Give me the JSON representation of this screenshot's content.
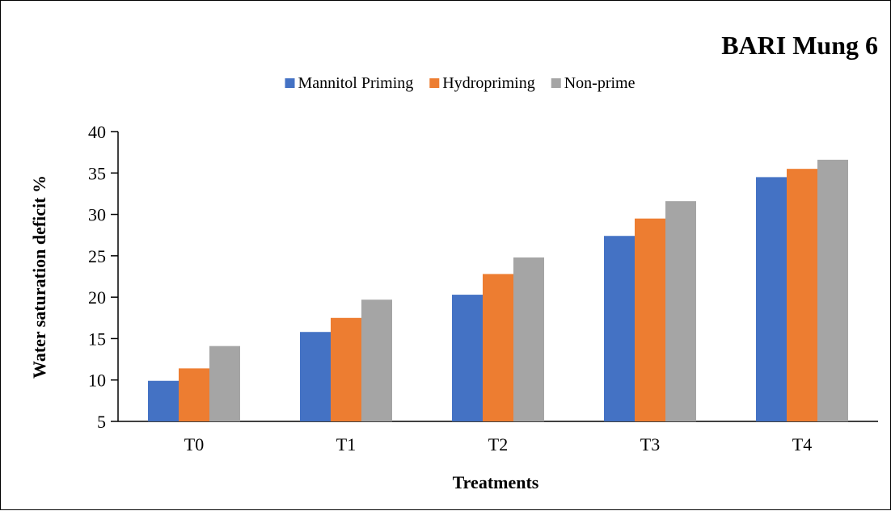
{
  "chart_data": {
    "type": "bar",
    "title": "BARI Mung 6",
    "xlabel": "Treatments",
    "ylabel": "Water saturation deficit %",
    "categories": [
      "T0",
      "T1",
      "T2",
      "T3",
      "T4"
    ],
    "series": [
      {
        "name": "Mannitol Priming",
        "color": "#4472C4",
        "values": [
          9.9,
          15.8,
          20.3,
          27.4,
          34.5
        ]
      },
      {
        "name": "Hydropriming",
        "color": "#ED7D31",
        "values": [
          11.4,
          17.5,
          22.8,
          29.5,
          35.5
        ]
      },
      {
        "name": "Non-prime",
        "color": "#A5A5A5",
        "values": [
          14.1,
          19.7,
          24.8,
          31.6,
          36.6
        ]
      }
    ],
    "ylim": [
      5,
      40
    ],
    "yticks": [
      5,
      10,
      15,
      20,
      25,
      30,
      35,
      40
    ],
    "grid": false,
    "legend_position": "top"
  }
}
